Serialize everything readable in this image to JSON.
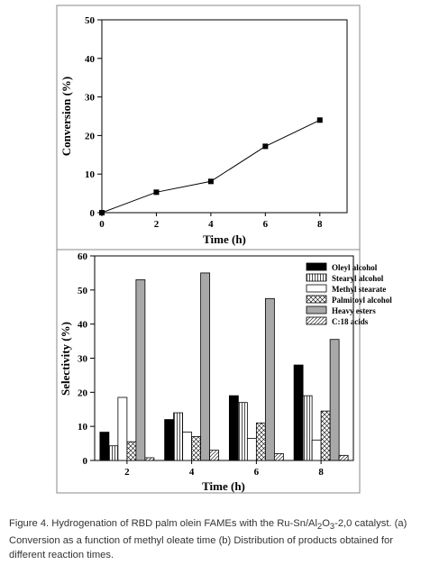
{
  "chart_data": [
    {
      "type": "line",
      "xlabel": "Time (h)",
      "ylabel": "Conversion (%)",
      "xlim": [
        0,
        9
      ],
      "ylim": [
        0,
        50
      ],
      "x_ticks": [
        0,
        2,
        4,
        6,
        8
      ],
      "y_ticks": [
        0,
        10,
        20,
        30,
        40,
        50
      ],
      "grid": false,
      "series": [
        {
          "points": [
            [
              0,
              0
            ],
            [
              2,
              5.3
            ],
            [
              4,
              8.1
            ],
            [
              6,
              17.2
            ],
            [
              8,
              24
            ]
          ]
        }
      ]
    },
    {
      "type": "bar",
      "xlabel": "Time (h)",
      "ylabel": "Selectivity (%)",
      "categories": [
        "2",
        "4",
        "6",
        "8"
      ],
      "ylim": [
        0,
        60
      ],
      "y_ticks": [
        0,
        10,
        20,
        30,
        40,
        50,
        60
      ],
      "grid": false,
      "legend_position": "top-right",
      "series": [
        {
          "name": "Oleyl alcohol",
          "pattern": "solid-black",
          "values": [
            8.3,
            12,
            19,
            28
          ]
        },
        {
          "name": "Stearyl alcohol",
          "pattern": "vertical-lines",
          "values": [
            4.3,
            14,
            17,
            19
          ]
        },
        {
          "name": "Methyl stearate",
          "pattern": "white",
          "values": [
            18.5,
            8.3,
            6.5,
            6
          ]
        },
        {
          "name": "Palmitoyl alcohol",
          "pattern": "crosshatch",
          "values": [
            5.5,
            7,
            11,
            14.5
          ]
        },
        {
          "name": "Heavy esters",
          "pattern": "solid-gray",
          "values": [
            53,
            55,
            47.5,
            35.5
          ]
        },
        {
          "name": "C:18 acids",
          "pattern": "diagonal-lines",
          "values": [
            0.8,
            3,
            2,
            1.5
          ]
        }
      ]
    }
  ],
  "caption": {
    "line1": "Figure 4. Hydrogenation of RBD palm olein FAMEs with the Ru-Sn/Al",
    "sub1": "2",
    "mid1": "O",
    "sub2": "3",
    "line1_end": "-2,0",
    "rest": " catalyst. (a) Conversion as a function of methyl oleate time (b) Distribution of products obtained for different reaction times."
  }
}
